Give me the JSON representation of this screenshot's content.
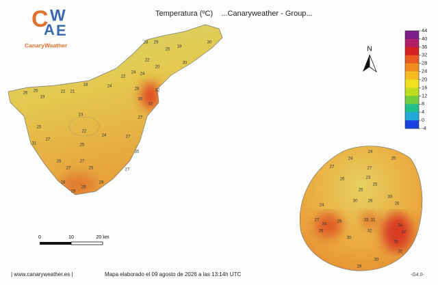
{
  "logo": {
    "letters": [
      "C",
      "A",
      "W",
      "E"
    ],
    "text": "CanaryWeather"
  },
  "title": "Temperatura (ºC)    ...Canaryweather - Group...",
  "north": "N",
  "colorbar": {
    "ticks": [
      44,
      40,
      36,
      32,
      28,
      24,
      20,
      16,
      12,
      8,
      4,
      0,
      -4
    ],
    "colors": [
      "#7a1e8c",
      "#b0206a",
      "#d42020",
      "#e85a20",
      "#f08c20",
      "#f5bb20",
      "#f0e020",
      "#c0dc20",
      "#70cc40",
      "#20c08c",
      "#20a8d8",
      "#1a40e0"
    ]
  },
  "scale": {
    "labels": [
      "0",
      "10",
      "20 km"
    ]
  },
  "footer": {
    "site": "| www.canaryweather.es |",
    "date": "Mapa elaborado el 09 agosto de 2026 a las 13:14h UTC",
    "version": "-G4.0-"
  },
  "stations": [
    28,
    29,
    18,
    30,
    25,
    22,
    20,
    30,
    24,
    24,
    22,
    18,
    24,
    22,
    21,
    26,
    25,
    19,
    28,
    32,
    30,
    32,
    23,
    22,
    25,
    31,
    27,
    24,
    27,
    25,
    35,
    26,
    27,
    25,
    27,
    28,
    29,
    29,
    29,
    27,
    27,
    24,
    25,
    24,
    27,
    27,
    26,
    23,
    25,
    25,
    30,
    24,
    26,
    33,
    26,
    27,
    34,
    29,
    33,
    31,
    34,
    37,
    30,
    25,
    35,
    32,
    31,
    30,
    29
  ]
}
